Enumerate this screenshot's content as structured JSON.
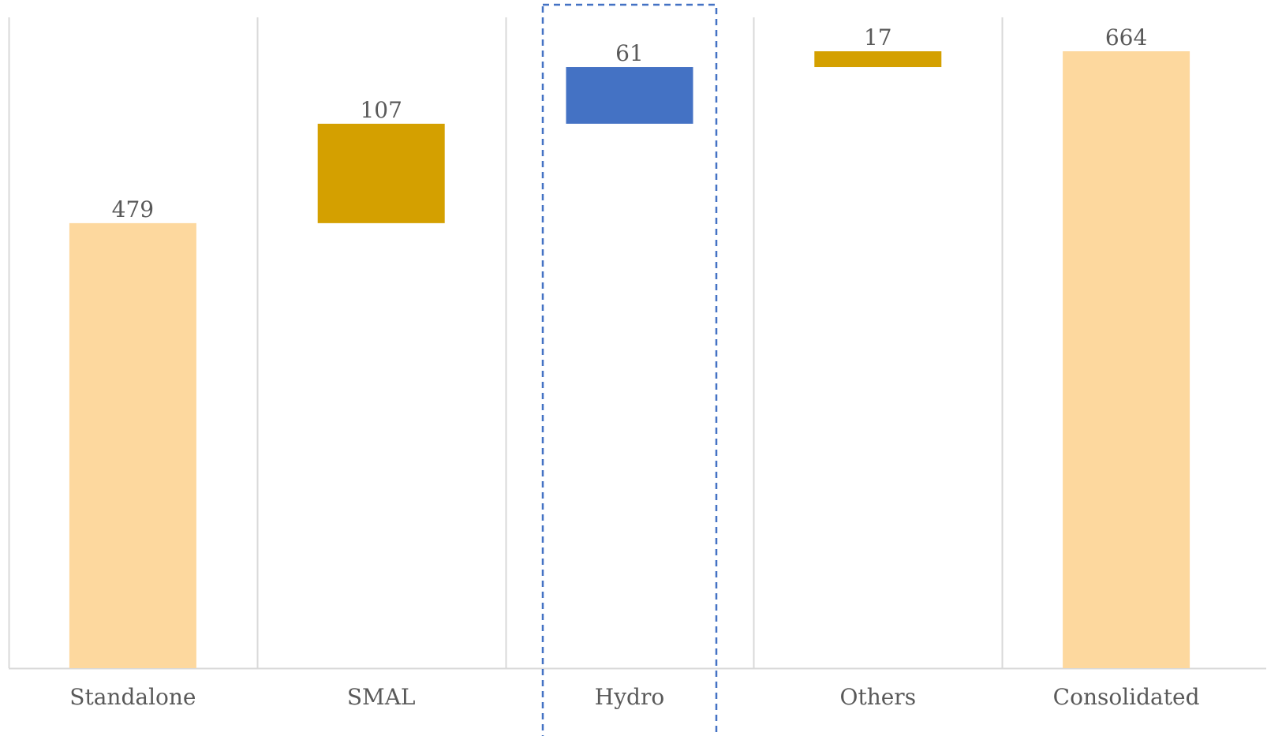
{
  "chart_data": {
    "type": "bar",
    "subtype": "waterfall",
    "title": "",
    "xlabel": "",
    "ylabel": "",
    "categories": [
      "Standalone",
      "SMAL",
      "Hydro",
      "Others",
      "Consolidated"
    ],
    "values": [
      479,
      107,
      61,
      17,
      664
    ],
    "value_labels": [
      "479",
      "107",
      "61",
      "17",
      "664"
    ],
    "bar_roles": [
      "total",
      "increase",
      "increase",
      "increase",
      "total"
    ],
    "ylim": [
      0,
      700
    ],
    "grid": "vertical",
    "highlighted_category": "Hydro",
    "colors": {
      "total": "#FDD89E",
      "increase": "#D4A000",
      "highlight": "#4472C4",
      "highlight_box": "#4472C4",
      "gridline": "#D9D9D9",
      "label": "#595959"
    }
  }
}
